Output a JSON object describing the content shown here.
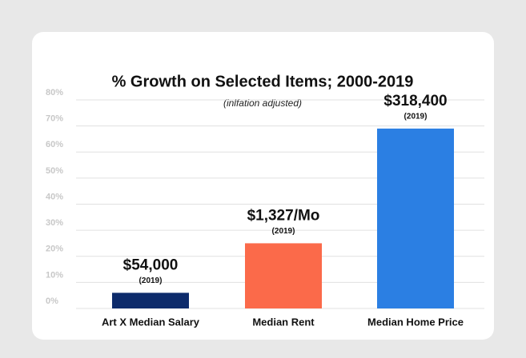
{
  "chart_data": {
    "type": "bar",
    "title": "% Growth on Selected Items; 2000-2019",
    "subtitle": "(inlfation adjusted)",
    "categories": [
      "Art X Median Salary",
      "Median Rent",
      "Median Home Price"
    ],
    "values": [
      6,
      25,
      69
    ],
    "colors": [
      "#0d2b6b",
      "#fb6a4a",
      "#2b7fe3"
    ],
    "annotations": [
      "$54,000",
      "$1,327/Mo",
      "$318,400"
    ],
    "annotation_notes": [
      "(2019)",
      "(2019)",
      "(2019)"
    ],
    "ylim": [
      0,
      80
    ],
    "yticks": [
      {
        "value": 0,
        "label": "0%"
      },
      {
        "value": 10,
        "label": "10%"
      },
      {
        "value": 20,
        "label": "20%"
      },
      {
        "value": 30,
        "label": "30%"
      },
      {
        "value": 40,
        "label": "40%"
      },
      {
        "value": 50,
        "label": "50%"
      },
      {
        "value": 60,
        "label": "60%"
      },
      {
        "value": 70,
        "label": "70%"
      },
      {
        "value": 80,
        "label": "80%"
      }
    ],
    "grid": true
  }
}
